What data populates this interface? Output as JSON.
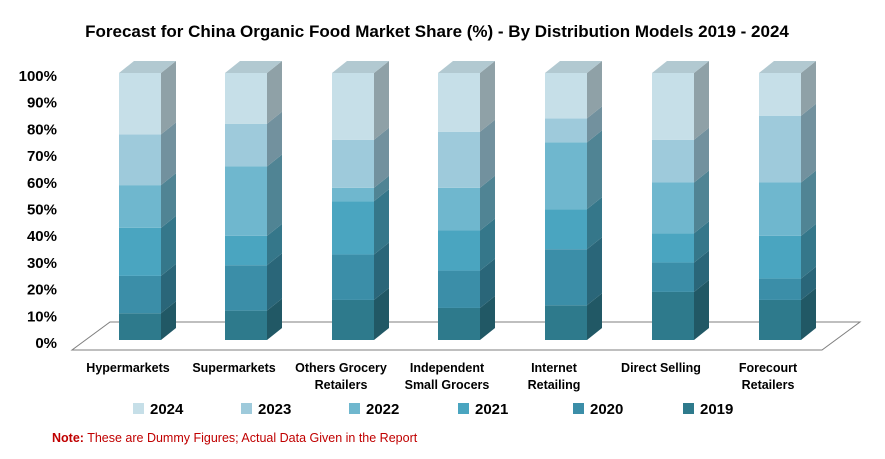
{
  "chart_data": {
    "type": "bar",
    "stacked": true,
    "normalized": true,
    "three_d": true,
    "title": "Forecast for China Organic Food Market Share (%)  - By Distribution Models 2019  - 2024",
    "categories": [
      [
        "Hypermarkets"
      ],
      [
        "Supermarkets"
      ],
      [
        "Others Grocery",
        "Retailers"
      ],
      [
        "Independent",
        "Small Grocers"
      ],
      [
        "Internet",
        "Retailing"
      ],
      [
        "Direct Selling"
      ],
      [
        "Forecourt",
        "Retailers"
      ]
    ],
    "yticks": [
      "0%",
      "10%",
      "20%",
      "30%",
      "40%",
      "50%",
      "60%",
      "70%",
      "80%",
      "90%",
      "100%"
    ],
    "ylim": [
      0,
      100
    ],
    "series": [
      {
        "name": "2019",
        "color": "#2e7a8c",
        "values": [
          10,
          11,
          15,
          12,
          13,
          18,
          15
        ]
      },
      {
        "name": "2020",
        "color": "#3b8ea8",
        "values": [
          14,
          17,
          17,
          14,
          21,
          11,
          8
        ]
      },
      {
        "name": "2021",
        "color": "#4aa5c0",
        "values": [
          18,
          11,
          20,
          15,
          15,
          11,
          16
        ]
      },
      {
        "name": "2022",
        "color": "#6fb7ce",
        "values": [
          16,
          26,
          5,
          16,
          25,
          19,
          20
        ]
      },
      {
        "name": "2023",
        "color": "#9ecadb",
        "values": [
          19,
          16,
          18,
          21,
          9,
          16,
          25
        ]
      },
      {
        "name": "2024",
        "color": "#c6dfe8",
        "values": [
          23,
          19,
          25,
          22,
          17,
          25,
          16
        ]
      }
    ],
    "legend_position": "bottom",
    "legend_order": [
      "2024",
      "2023",
      "2022",
      "2021",
      "2020",
      "2019"
    ],
    "grid": false
  },
  "note": {
    "label": "Note:",
    "text": " These are Dummy Figures; Actual Data Given in the Report"
  }
}
